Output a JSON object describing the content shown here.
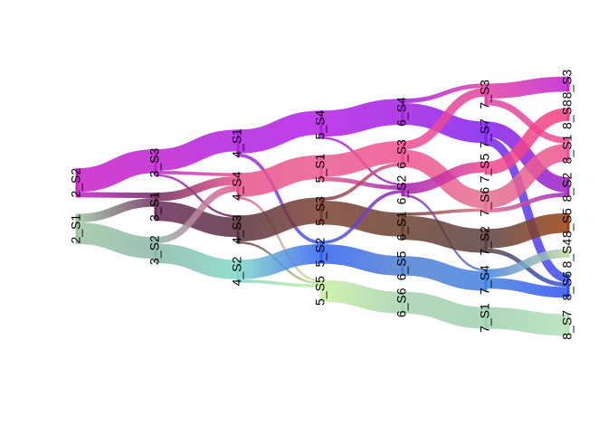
{
  "chart_data": {
    "type": "sankey",
    "stages": [
      {
        "nodes": [
          {
            "name": "2_S2",
            "color": "#c81ec8"
          },
          {
            "name": "2_S1",
            "color": "#9cc4a0"
          }
        ]
      },
      {
        "nodes": [
          {
            "name": "3_S3",
            "color": "#c020d0"
          },
          {
            "name": "3_S1",
            "color": "#6a2a5a"
          },
          {
            "name": "3_S2",
            "color": "#8ab8a8"
          }
        ]
      },
      {
        "nodes": [
          {
            "name": "4_S1",
            "color": "#b020e0"
          },
          {
            "name": "4_S4",
            "color": "#e8508a"
          },
          {
            "name": "4_S3",
            "color": "#5a3040"
          },
          {
            "name": "4_S2",
            "color": "#80d8c8"
          }
        ]
      },
      {
        "nodes": [
          {
            "name": "5_S4",
            "color": "#b41ee6"
          },
          {
            "name": "5_S1",
            "color": "#e85a90"
          },
          {
            "name": "5_S3",
            "color": "#7a4030"
          },
          {
            "name": "5_S2",
            "color": "#3060f0"
          },
          {
            "name": "5_S5",
            "color": "#c8f0a0"
          }
        ]
      },
      {
        "nodes": [
          {
            "name": "6_S4",
            "color": "#a020e0"
          },
          {
            "name": "6_S3",
            "color": "#f05090"
          },
          {
            "name": "6_S2",
            "color": "#a020b0"
          },
          {
            "name": "6_S1",
            "color": "#6a4030"
          },
          {
            "name": "6_S5",
            "color": "#5080d0"
          },
          {
            "name": "6_S6",
            "color": "#a8d0b0"
          }
        ]
      },
      {
        "nodes": [
          {
            "name": "7_S3",
            "color": "#e040a0"
          },
          {
            "name": "7_S7",
            "color": "#8020f0"
          },
          {
            "name": "7_S5",
            "color": "#f04890"
          },
          {
            "name": "7_S6",
            "color": "#e07090"
          },
          {
            "name": "7_S2",
            "color": "#5a4040"
          },
          {
            "name": "7_S4",
            "color": "#4080e0"
          },
          {
            "name": "7_S1",
            "color": "#a0d0b0"
          }
        ]
      },
      {
        "nodes": [
          {
            "name": "8_S3",
            "color": "#c020d0"
          },
          {
            "name": "8_S8",
            "color": "#f04080"
          },
          {
            "name": "8_S1",
            "color": "#f05090"
          },
          {
            "name": "8_S2",
            "color": "#a020c0"
          },
          {
            "name": "8_S5",
            "color": "#9a4010"
          },
          {
            "name": "8_S4",
            "color": "#c0d8a0"
          },
          {
            "name": "8_S6",
            "color": "#3050f0"
          },
          {
            "name": "8_S7",
            "color": "#b0e0b8"
          }
        ]
      }
    ],
    "links": [
      {
        "source": [
          0,
          0
        ],
        "target": [
          1,
          0
        ],
        "value": 22
      },
      {
        "source": [
          0,
          0
        ],
        "target": [
          1,
          1
        ],
        "value": 5
      },
      {
        "source": [
          0,
          1
        ],
        "target": [
          1,
          1
        ],
        "value": 8
      },
      {
        "source": [
          0,
          1
        ],
        "target": [
          1,
          2
        ],
        "value": 20
      },
      {
        "source": [
          1,
          0
        ],
        "target": [
          2,
          0
        ],
        "value": 20
      },
      {
        "source": [
          1,
          0
        ],
        "target": [
          2,
          1
        ],
        "value": 3
      },
      {
        "source": [
          1,
          0
        ],
        "target": [
          2,
          2
        ],
        "value": 2
      },
      {
        "source": [
          1,
          1
        ],
        "target": [
          2,
          1
        ],
        "value": 8
      },
      {
        "source": [
          1,
          1
        ],
        "target": [
          2,
          2
        ],
        "value": 18
      },
      {
        "source": [
          1,
          2
        ],
        "target": [
          2,
          1
        ],
        "value": 6
      },
      {
        "source": [
          1,
          2
        ],
        "target": [
          2,
          3
        ],
        "value": 18
      },
      {
        "source": [
          2,
          0
        ],
        "target": [
          3,
          0
        ],
        "value": 22
      },
      {
        "source": [
          2,
          0
        ],
        "target": [
          3,
          3
        ],
        "value": 3
      },
      {
        "source": [
          2,
          1
        ],
        "target": [
          3,
          1
        ],
        "value": 22
      },
      {
        "source": [
          2,
          1
        ],
        "target": [
          3,
          4
        ],
        "value": 2
      },
      {
        "source": [
          2,
          2
        ],
        "target": [
          3,
          2
        ],
        "value": 24
      },
      {
        "source": [
          2,
          2
        ],
        "target": [
          3,
          4
        ],
        "value": 2
      },
      {
        "source": [
          2,
          3
        ],
        "target": [
          3,
          3
        ],
        "value": 18
      },
      {
        "source": [
          2,
          3
        ],
        "target": [
          3,
          4
        ],
        "value": 3
      },
      {
        "source": [
          3,
          0
        ],
        "target": [
          4,
          0
        ],
        "value": 24
      },
      {
        "source": [
          3,
          0
        ],
        "target": [
          4,
          2
        ],
        "value": 2
      },
      {
        "source": [
          3,
          1
        ],
        "target": [
          4,
          1
        ],
        "value": 20
      },
      {
        "source": [
          3,
          1
        ],
        "target": [
          4,
          2
        ],
        "value": 4
      },
      {
        "source": [
          3,
          2
        ],
        "target": [
          4,
          1
        ],
        "value": 3
      },
      {
        "source": [
          3,
          2
        ],
        "target": [
          4,
          3
        ],
        "value": 22
      },
      {
        "source": [
          3,
          3
        ],
        "target": [
          4,
          2
        ],
        "value": 3
      },
      {
        "source": [
          3,
          3
        ],
        "target": [
          4,
          4
        ],
        "value": 18
      },
      {
        "source": [
          3,
          4
        ],
        "target": [
          4,
          5
        ],
        "value": 20
      },
      {
        "source": [
          4,
          0
        ],
        "target": [
          5,
          0
        ],
        "value": 4
      },
      {
        "source": [
          4,
          0
        ],
        "target": [
          5,
          1
        ],
        "value": 20
      },
      {
        "source": [
          4,
          1
        ],
        "target": [
          5,
          0
        ],
        "value": 8
      },
      {
        "source": [
          4,
          1
        ],
        "target": [
          5,
          3
        ],
        "value": 16
      },
      {
        "source": [
          4,
          2
        ],
        "target": [
          5,
          2
        ],
        "value": 10
      },
      {
        "source": [
          4,
          2
        ],
        "target": [
          5,
          5
        ],
        "value": 2
      },
      {
        "source": [
          4,
          3
        ],
        "target": [
          5,
          3
        ],
        "value": 3
      },
      {
        "source": [
          4,
          3
        ],
        "target": [
          5,
          4
        ],
        "value": 22
      },
      {
        "source": [
          4,
          4
        ],
        "target": [
          5,
          5
        ],
        "value": 18
      },
      {
        "source": [
          4,
          5
        ],
        "target": [
          5,
          6
        ],
        "value": 20
      },
      {
        "source": [
          5,
          0
        ],
        "target": [
          6,
          0
        ],
        "value": 14
      },
      {
        "source": [
          5,
          0
        ],
        "target": [
          6,
          2
        ],
        "value": 6
      },
      {
        "source": [
          5,
          1
        ],
        "target": [
          6,
          3
        ],
        "value": 14
      },
      {
        "source": [
          5,
          1
        ],
        "target": [
          6,
          6
        ],
        "value": 8
      },
      {
        "source": [
          5,
          2
        ],
        "target": [
          6,
          1
        ],
        "value": 12
      },
      {
        "source": [
          5,
          3
        ],
        "target": [
          6,
          2
        ],
        "value": 16
      },
      {
        "source": [
          5,
          3
        ],
        "target": [
          6,
          3
        ],
        "value": 4
      },
      {
        "source": [
          5,
          4
        ],
        "target": [
          6,
          4
        ],
        "value": 18
      },
      {
        "source": [
          5,
          4
        ],
        "target": [
          6,
          6
        ],
        "value": 4
      },
      {
        "source": [
          5,
          5
        ],
        "target": [
          6,
          5
        ],
        "value": 8
      },
      {
        "source": [
          5,
          5
        ],
        "target": [
          6,
          6
        ],
        "value": 10
      },
      {
        "source": [
          5,
          6
        ],
        "target": [
          6,
          7
        ],
        "value": 20
      }
    ]
  }
}
